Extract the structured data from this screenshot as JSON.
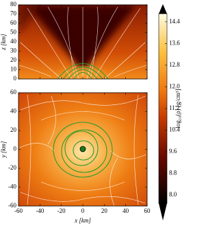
{
  "chart_data": [
    {
      "type": "heatmap",
      "ylabel": "z [km]",
      "xlim": [
        -60,
        60
      ],
      "ylim": [
        0,
        80
      ],
      "xticks": [
        -60,
        -40,
        -20,
        0,
        20,
        40,
        60
      ],
      "yticks": [
        0,
        10,
        20,
        30,
        40,
        50,
        60,
        70,
        80
      ]
    },
    {
      "type": "heatmap",
      "xlabel": "x [km]",
      "ylabel": "y [km]",
      "xlim": [
        -60,
        60
      ],
      "ylim": [
        -60,
        60
      ],
      "xticks": [
        -60,
        -40,
        -20,
        0,
        20,
        40,
        60
      ],
      "yticks": [
        -60,
        -40,
        -20,
        0,
        20,
        40,
        60
      ]
    }
  ],
  "colorbar": {
    "label": "log₁₀(ρ) [g/cm³]",
    "lim": [
      7.7,
      14.7
    ],
    "ticks": [
      {
        "value": 8,
        "label": "8.0"
      },
      8.8,
      9.6,
      10.4,
      11.2,
      {
        "value": 12,
        "label": "12.0"
      },
      12.8,
      13.6,
      14.4
    ]
  }
}
